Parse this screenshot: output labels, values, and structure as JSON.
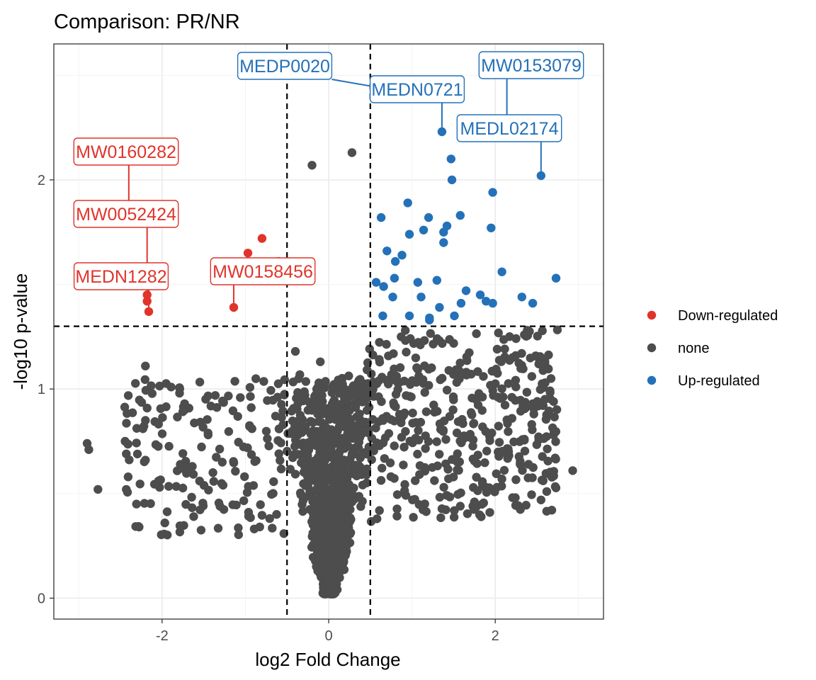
{
  "chart_data": {
    "type": "scatter",
    "title": "Comparison: PR/NR",
    "xlabel": "log2 Fold Change",
    "ylabel": "-log10 p-value",
    "xlim": [
      -3.3,
      3.3
    ],
    "ylim": [
      -0.1,
      2.65
    ],
    "x_ticks": [
      -2,
      0,
      2
    ],
    "y_ticks": [
      0,
      1,
      2
    ],
    "grid": true,
    "legend_position": "right",
    "thresholds": {
      "x": [
        -0.5,
        0.5
      ],
      "y": 1.3
    },
    "colors": {
      "down": "#E0342B",
      "none": "#4D4D4D",
      "up": "#2471B9"
    },
    "legend": [
      {
        "label": "Down-regulated",
        "color": "#E0342B"
      },
      {
        "label": "none",
        "color": "#4D4D4D"
      },
      {
        "label": "Up-regulated",
        "color": "#2471B9"
      }
    ],
    "series": [
      {
        "name": "Down-regulated",
        "color": "#E0342B",
        "points": [
          [
            -2.4,
            1.88
          ],
          [
            -0.8,
            1.72
          ],
          [
            -0.97,
            1.65
          ],
          [
            -0.6,
            1.61
          ],
          [
            -0.53,
            1.58
          ],
          [
            -2.18,
            1.45
          ],
          [
            -2.18,
            1.42
          ],
          [
            -2.16,
            1.37
          ],
          [
            -1.14,
            1.39
          ]
        ]
      },
      {
        "name": "Up-regulated",
        "color": "#2471B9",
        "points": [
          [
            0.91,
            2.42
          ],
          [
            1.36,
            2.23
          ],
          [
            2.14,
            2.23
          ],
          [
            1.47,
            2.1
          ],
          [
            2.55,
            2.02
          ],
          [
            1.48,
            2.0
          ],
          [
            1.97,
            1.94
          ],
          [
            0.95,
            1.89
          ],
          [
            0.63,
            1.82
          ],
          [
            1.2,
            1.82
          ],
          [
            1.58,
            1.83
          ],
          [
            1.95,
            1.77
          ],
          [
            1.42,
            1.78
          ],
          [
            1.38,
            1.75
          ],
          [
            1.14,
            1.76
          ],
          [
            0.97,
            1.74
          ],
          [
            1.38,
            1.7
          ],
          [
            0.7,
            1.66
          ],
          [
            0.88,
            1.64
          ],
          [
            0.8,
            1.61
          ],
          [
            2.08,
            1.56
          ],
          [
            2.73,
            1.53
          ],
          [
            0.57,
            1.51
          ],
          [
            0.66,
            1.49
          ],
          [
            0.79,
            1.53
          ],
          [
            1.07,
            1.51
          ],
          [
            1.3,
            1.52
          ],
          [
            1.65,
            1.47
          ],
          [
            1.82,
            1.45
          ],
          [
            0.77,
            1.44
          ],
          [
            1.11,
            1.44
          ],
          [
            2.32,
            1.44
          ],
          [
            1.89,
            1.42
          ],
          [
            1.97,
            1.41
          ],
          [
            1.59,
            1.41
          ],
          [
            1.33,
            1.39
          ],
          [
            2.45,
            1.41
          ],
          [
            0.65,
            1.35
          ],
          [
            0.97,
            1.35
          ],
          [
            1.21,
            1.34
          ],
          [
            1.51,
            1.35
          ],
          [
            1.21,
            1.33
          ]
        ]
      }
    ],
    "labels": [
      {
        "text": "MEDP0020",
        "class": "up",
        "point": [
          0.91,
          2.42
        ]
      },
      {
        "text": "MEDN0721",
        "class": "up",
        "point": [
          1.36,
          2.23
        ]
      },
      {
        "text": "MW0153079",
        "class": "up",
        "point": [
          2.14,
          2.23
        ]
      },
      {
        "text": "MEDL02174",
        "class": "up",
        "point": [
          2.55,
          2.02
        ]
      },
      {
        "text": "MW0160282",
        "class": "down",
        "point": [
          -2.4,
          1.88
        ]
      },
      {
        "text": "MW0052424",
        "class": "down",
        "point": [
          -2.18,
          1.45
        ]
      },
      {
        "text": "MEDN1282",
        "class": "down",
        "point": [
          -2.16,
          1.37
        ]
      },
      {
        "text": "MW0158456",
        "class": "down",
        "point": [
          -1.14,
          1.39
        ]
      }
    ],
    "none_cloud_description": "approx 1600 non-significant points forming a V shape centred at x = 0"
  }
}
